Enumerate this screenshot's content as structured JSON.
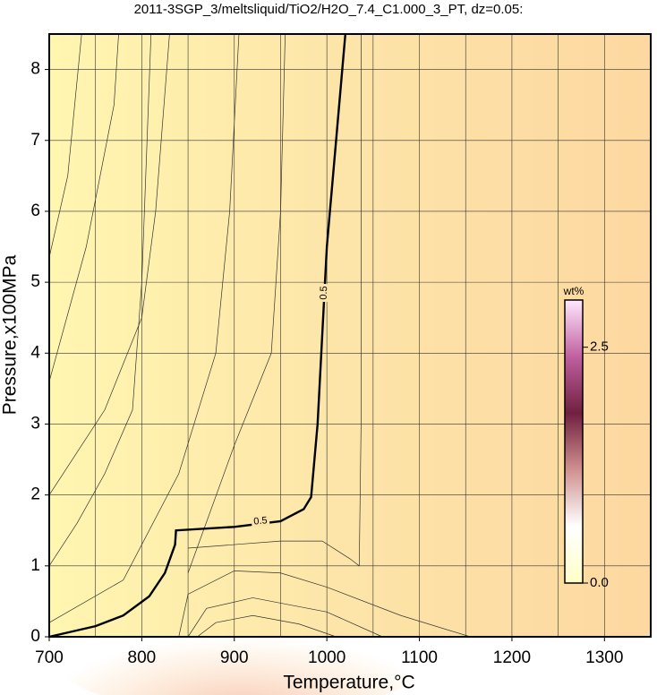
{
  "chart_data": {
    "type": "contour",
    "title": "2011-3SGP_3/meltsliquid/TiO2/H2O_7.4_C1.000_3_PT, dz=0.05:",
    "x_label": "Temperature,°C",
    "y_label": "Pressure,x100MPa",
    "xlim": [
      700,
      1350
    ],
    "ylim": [
      0,
      8.5
    ],
    "xticks": [
      700,
      800,
      900,
      1000,
      1100,
      1200,
      1300
    ],
    "x_minor_grid": [
      750,
      850,
      950,
      1050,
      1150,
      1250
    ],
    "yticks": [
      0,
      1,
      2,
      3,
      4,
      5,
      6,
      7,
      8
    ],
    "grid": true,
    "series": [
      {
        "level": 0.5,
        "color": "#000000",
        "x": [
          700,
          750,
          780,
          808,
          825,
          836,
          837,
          900,
          950,
          975,
          983,
          990,
          996,
          1000,
          1010,
          1020
        ],
        "y": [
          0,
          0.15,
          0.3,
          0.57,
          0.9,
          1.3,
          1.5,
          1.55,
          1.63,
          1.8,
          1.97,
          3,
          4.5,
          5.5,
          7,
          8.5
        ]
      }
    ],
    "contours": [
      {
        "x": [
          700,
          720,
          735
        ],
        "y": [
          5.35,
          6.5,
          8.5
        ]
      },
      {
        "x": [
          700,
          740,
          770,
          775
        ],
        "y": [
          3.6,
          5.5,
          7.5,
          8.5
        ]
      },
      {
        "x": [
          700,
          760,
          800,
          815,
          830
        ],
        "y": [
          2.0,
          3.2,
          4.5,
          6,
          8.5
        ]
      },
      {
        "x": [
          700,
          730,
          760,
          790,
          800,
          810
        ],
        "y": [
          1.0,
          1.6,
          2.3,
          3.2,
          5,
          8.5
        ]
      },
      {
        "x": [
          700,
          780,
          840,
          880,
          895,
          905
        ],
        "y": [
          0.2,
          0.8,
          2.3,
          4,
          6,
          8.5
        ]
      },
      {
        "x": [
          850,
          900,
          940,
          950,
          955
        ],
        "y": [
          0.9,
          2.7,
          4,
          6,
          8.5
        ]
      },
      {
        "x": [
          1037,
          1037,
          1035,
          1025,
          995,
          950,
          900,
          850
        ],
        "y": [
          8.5,
          3,
          1.0,
          1.1,
          1.35,
          1.35,
          1.3,
          1.25
        ]
      },
      {
        "x": [
          840,
          850,
          900,
          950,
          1000,
          1080,
          1155
        ],
        "y": [
          0,
          0.6,
          0.93,
          0.9,
          0.7,
          0.3,
          0
        ]
      },
      {
        "x": [
          850,
          870,
          920,
          1000,
          1060
        ],
        "y": [
          0,
          0.4,
          0.55,
          0.35,
          0
        ]
      },
      {
        "x": [
          860,
          880,
          920,
          970,
          1010
        ],
        "y": [
          0,
          0.2,
          0.3,
          0.18,
          0
        ]
      }
    ],
    "colorbar": {
      "label": "wt%",
      "lim": [
        0,
        3
      ],
      "ticks": [
        {
          "value": 0,
          "label": "0.0"
        },
        2.5
      ],
      "colors": [
        "#ffffc8",
        "#ffffff",
        "#d09090",
        "#702040",
        "#c060a0",
        "#ffe8ff"
      ]
    }
  }
}
